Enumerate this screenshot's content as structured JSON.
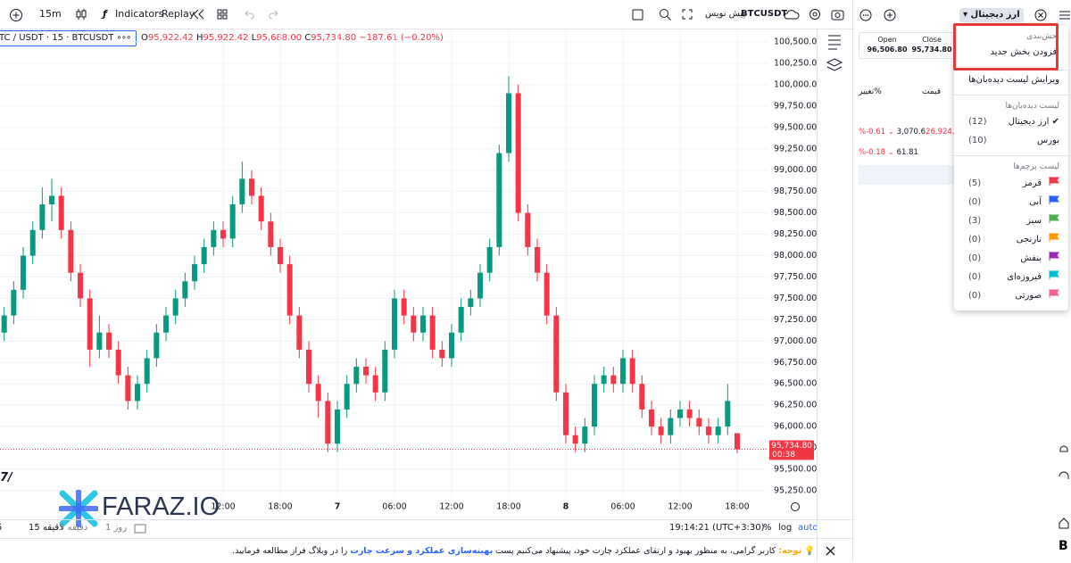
{
  "toolbar": {
    "interval": "15m",
    "indicators": "Indicators",
    "replay": "Replay",
    "symbol": "BTCUSDT",
    "draft": "پیش نویس"
  },
  "chart_data": {
    "type": "candlestick",
    "legend": {
      "symbol": "TC / USDT · 15 · BTCUSDT",
      "o": "O",
      "open": "95,922.42",
      "h": "H",
      "high": "95,922.42",
      "l": "L",
      "low": "95,688.00",
      "c": "C",
      "close": "95,734.80",
      "change": "−187.61 (−0.20%)"
    },
    "up_color": "#089981",
    "down_color": "#f23645",
    "grid": true,
    "ylim": [
      95166,
      100657
    ],
    "xlim": [
      -11.44,
      69.19
    ],
    "yticks": [
      {
        "value": 95250,
        "label": "95,250.00"
      },
      {
        "value": 95500,
        "label": "95,500.00"
      },
      {
        "value": 95750,
        "label": "95,750.00"
      },
      {
        "value": 96000,
        "label": "96,000.00"
      },
      {
        "value": 96250,
        "label": "96,250.00"
      },
      {
        "value": 96500,
        "label": "96,500.00"
      },
      {
        "value": 96750,
        "label": "96,750.00"
      },
      {
        "value": 97000,
        "label": "97,000.00"
      },
      {
        "value": 97250,
        "label": "97,250.00"
      },
      {
        "value": 97500,
        "label": "97,500.00"
      },
      {
        "value": 97750,
        "label": "97,750.00"
      },
      {
        "value": 98000,
        "label": "98,000.00"
      },
      {
        "value": 98250,
        "label": "98,250.00"
      },
      {
        "value": 98500,
        "label": "98,500.00"
      },
      {
        "value": 98750,
        "label": "98,750.00"
      },
      {
        "value": 99000,
        "label": "99,000.00"
      },
      {
        "value": 99250,
        "label": "99,250.00"
      },
      {
        "value": 99500,
        "label": "99,500.00"
      },
      {
        "value": 99750,
        "label": "99,750.00"
      },
      {
        "value": 100000,
        "label": "100,000.00"
      },
      {
        "value": 100250,
        "label": "100,250.00"
      },
      {
        "value": 100500,
        "label": "100,500.00"
      }
    ],
    "xticks": [
      {
        "value": 12,
        "label": "12:00"
      },
      {
        "value": 18,
        "label": "18:00"
      },
      {
        "value": 24,
        "label": "7"
      },
      {
        "value": 30,
        "label": "06:00"
      },
      {
        "value": 36,
        "label": "12:00"
      },
      {
        "value": 42,
        "label": "18:00"
      },
      {
        "value": 48,
        "label": "8"
      },
      {
        "value": 54,
        "label": "06:00"
      },
      {
        "value": 60,
        "label": "12:00"
      },
      {
        "value": 66,
        "label": "18:00"
      }
    ],
    "last_price": {
      "value": 95734.8,
      "label": "95,734.80",
      "countdown": "00:38"
    },
    "x": [
      -11,
      -10,
      -9,
      -8,
      -7,
      -6,
      -5,
      -4,
      -3,
      -2,
      -1,
      0,
      1,
      2,
      3,
      4,
      5,
      6,
      7,
      8,
      9,
      10,
      11,
      12,
      13,
      14,
      15,
      16,
      17,
      18,
      19,
      20,
      21,
      22,
      23,
      24,
      25,
      26,
      27,
      28,
      29,
      30,
      31,
      32,
      33,
      34,
      35,
      36,
      37,
      38,
      39,
      40,
      41,
      42,
      43,
      44,
      45,
      46,
      47,
      48,
      49,
      50,
      51,
      52,
      53,
      54,
      55,
      56,
      57,
      58,
      59,
      60,
      61,
      62,
      63,
      64,
      65,
      66
    ],
    "candles": [
      [
        97100,
        97400,
        97000,
        97300
      ],
      [
        97300,
        97700,
        97200,
        97600
      ],
      [
        97600,
        98100,
        97500,
        98000
      ],
      [
        98000,
        98400,
        97900,
        98300
      ],
      [
        98300,
        98800,
        98200,
        98600
      ],
      [
        98600,
        98900,
        98400,
        98700
      ],
      [
        98700,
        98800,
        98200,
        98300
      ],
      [
        98300,
        98400,
        97700,
        97800
      ],
      [
        97800,
        97900,
        97400,
        97500
      ],
      [
        97500,
        97600,
        96700,
        96900
      ],
      [
        96900,
        97300,
        96800,
        97100
      ],
      [
        97100,
        97200,
        96800,
        96900
      ],
      [
        96900,
        97000,
        96500,
        96600
      ],
      [
        96600,
        96700,
        96200,
        96300
      ],
      [
        96300,
        96600,
        96200,
        96500
      ],
      [
        96500,
        96900,
        96400,
        96800
      ],
      [
        96800,
        97200,
        96700,
        97100
      ],
      [
        97100,
        97400,
        97000,
        97300
      ],
      [
        97300,
        97600,
        97200,
        97500
      ],
      [
        97500,
        97800,
        97400,
        97700
      ],
      [
        97700,
        98000,
        97600,
        97900
      ],
      [
        97900,
        98200,
        97800,
        98100
      ],
      [
        98100,
        98400,
        98000,
        98300
      ],
      [
        98300,
        98400,
        98100,
        98200
      ],
      [
        98200,
        98700,
        98100,
        98600
      ],
      [
        98600,
        99100,
        98500,
        98900
      ],
      [
        98900,
        99000,
        98600,
        98700
      ],
      [
        98700,
        98800,
        98300,
        98400
      ],
      [
        98400,
        98500,
        98000,
        98100
      ],
      [
        98100,
        98200,
        97800,
        97900
      ],
      [
        97900,
        98000,
        97200,
        97300
      ],
      [
        97300,
        97400,
        96800,
        96900
      ],
      [
        96900,
        97000,
        96400,
        96500
      ],
      [
        96500,
        96600,
        96100,
        96300
      ],
      [
        96300,
        96400,
        95700,
        95800
      ],
      [
        95800,
        96300,
        95700,
        96200
      ],
      [
        96200,
        96600,
        96100,
        96500
      ],
      [
        96500,
        96800,
        96400,
        96700
      ],
      [
        96700,
        96800,
        96500,
        96600
      ],
      [
        96600,
        96700,
        96300,
        96400
      ],
      [
        96400,
        97000,
        96300,
        96900
      ],
      [
        96900,
        97600,
        96800,
        97500
      ],
      [
        97500,
        97600,
        97200,
        97300
      ],
      [
        97300,
        97400,
        97000,
        97100
      ],
      [
        97100,
        97400,
        97000,
        97300
      ],
      [
        97300,
        97400,
        96800,
        96900
      ],
      [
        96900,
        97000,
        96700,
        96800
      ],
      [
        96800,
        97200,
        96700,
        97100
      ],
      [
        97100,
        97500,
        97000,
        97400
      ],
      [
        97400,
        97600,
        97300,
        97500
      ],
      [
        97500,
        97900,
        97400,
        97800
      ],
      [
        97800,
        98200,
        97700,
        98100
      ],
      [
        98100,
        99300,
        98000,
        99200
      ],
      [
        99200,
        100100,
        99100,
        99900
      ],
      [
        99900,
        100000,
        98400,
        98500
      ],
      [
        98500,
        98600,
        98000,
        98100
      ],
      [
        98100,
        98200,
        97700,
        97800
      ],
      [
        97800,
        97900,
        97200,
        97300
      ],
      [
        97300,
        97400,
        96300,
        96400
      ],
      [
        96400,
        96500,
        95800,
        95900
      ],
      [
        95900,
        96000,
        95700,
        95800
      ],
      [
        95800,
        96100,
        95700,
        96000
      ],
      [
        96000,
        96600,
        95900,
        96500
      ],
      [
        96500,
        96700,
        96400,
        96600
      ],
      [
        96600,
        96700,
        96400,
        96500
      ],
      [
        96500,
        96900,
        96400,
        96800
      ],
      [
        96800,
        96900,
        96400,
        96500
      ],
      [
        96500,
        96600,
        96100,
        96200
      ],
      [
        96200,
        96300,
        95900,
        96000
      ],
      [
        96000,
        96100,
        95800,
        95900
      ],
      [
        95900,
        96200,
        95800,
        96100
      ],
      [
        96100,
        96300,
        96000,
        96200
      ],
      [
        96200,
        96300,
        96000,
        96100
      ],
      [
        96100,
        96200,
        95900,
        96000
      ],
      [
        96000,
        96100,
        95800,
        95900
      ],
      [
        95900,
        96100,
        95800,
        96000
      ],
      [
        96000,
        96500,
        95900,
        96300
      ],
      [
        95922.42,
        95922.42,
        95688,
        95734.8
      ]
    ]
  },
  "watermark": "FARAZ.IO",
  "bottom_bar": {
    "intervals": [
      "5",
      "دقیقه 15",
      "دقیقه 5",
      "روز 1"
    ],
    "clock": "19:14:21 (UTC+3:30)",
    "percent": "%",
    "log": "log",
    "auto": "auto"
  },
  "notice": {
    "prefix": "توجه:",
    "text": "کاربر گرامی، به منظور بهبود و ارتقای عملکرد چارت خود، پیشنهاد می‌کنیم پست",
    "link": "بهینه‌سازی عملکرد و سرعت چارت",
    "suffix": "را در وبلاگ فراز مطالعه فرمایید."
  },
  "panel": {
    "list_name": "ارز دیجیتال",
    "open_label": "Open",
    "open": "96,506.80",
    "close_label": "Close",
    "close": "95,734.80",
    "price_header": "قیمت",
    "change_header": "تغییر%",
    "rows": [
      {
        "change": "%-0.61",
        "price": "3,070.6",
        "volume": "26,924,179"
      },
      {
        "change": "%-0.18",
        "price": "61.81"
      }
    ]
  },
  "menu": {
    "section_title": "بخش‌بندی",
    "add_section": "افزودن بخش جدید",
    "edit_lists": "ویرایش لیست دیده‌بان‌ها",
    "watchlists_title": "لیست دیده‌بان‌ها",
    "watchlists": [
      {
        "name": "ارز دیجیتال",
        "count": "(12)"
      },
      {
        "name": "بورس",
        "count": "(10)"
      }
    ],
    "flags_title": "لیست پرچم‌ها",
    "flags": [
      {
        "name": "قرمز",
        "count": "(5)",
        "color": "#f23645"
      },
      {
        "name": "آبی",
        "count": "(0)",
        "color": "#2962ff"
      },
      {
        "name": "سبز",
        "count": "(3)",
        "color": "#4caf50"
      },
      {
        "name": "نارنجی",
        "count": "(0)",
        "color": "#ff9800"
      },
      {
        "name": "بنفش",
        "count": "(0)",
        "color": "#9c27b0"
      },
      {
        "name": "فیروزه‌ای",
        "count": "(0)",
        "color": "#00bcd4"
      },
      {
        "name": "صورتی",
        "count": "(0)",
        "color": "#f06292"
      }
    ]
  }
}
